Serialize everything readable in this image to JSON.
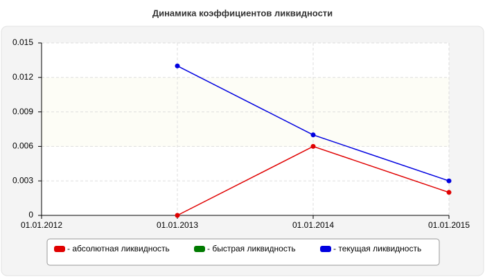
{
  "chart_data": {
    "type": "line",
    "title": "Динамика коэффициентов ликвидности",
    "categories": [
      "01.01.2012",
      "01.01.2013",
      "01.01.2014",
      "01.01.2015"
    ],
    "series": [
      {
        "name": "- абсолютная ликвидность",
        "color": "#e00000",
        "values": [
          null,
          0,
          0.006,
          0.002
        ]
      },
      {
        "name": "- быстрая ликвидность",
        "color": "#007a00",
        "values": [
          null,
          null,
          null,
          null
        ]
      },
      {
        "name": "- текущая ликвидность",
        "color": "#0000e0",
        "values": [
          null,
          0.013,
          0.007,
          0.003
        ]
      }
    ],
    "ylim": [
      0,
      0.015
    ],
    "yticks": [
      0,
      0.003,
      0.006,
      0.009,
      0.012,
      0.015
    ],
    "grid": true,
    "legend": "bottom"
  }
}
